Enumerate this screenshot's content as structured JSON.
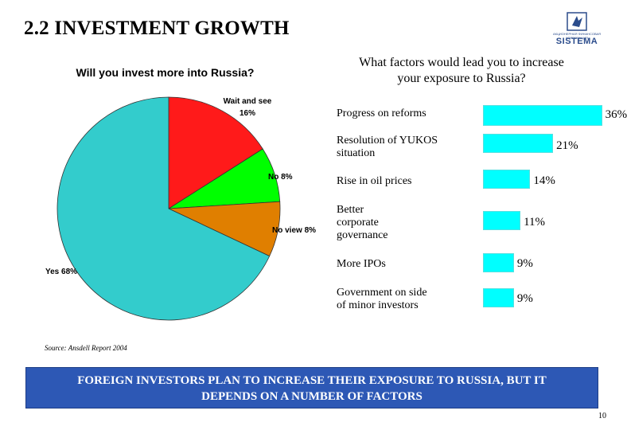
{
  "page": {
    "title": "2.2 INVESTMENT GROWTH",
    "source": "Source: Ansdell Report 2004",
    "banner_line1": "FOREIGN INVESTORS PLAN TO INCREASE THEIR EXPOSURE TO RUSSIA, BUT IT",
    "banner_line2": "DEPENDS ON A NUMBER OF FACTORS",
    "page_number": "10",
    "logo_text": "SISTEMA",
    "logo_subtext": "АКЦИОНЕРНАЯ ФИНАНСОВАЯ КОРПОРАЦИЯ"
  },
  "chart_data": [
    {
      "type": "pie",
      "title": "Will you invest more into Russia?",
      "slices": [
        {
          "label_line1": "Wait and see",
          "label_line2": "16%",
          "value": 16,
          "color": "#ff1a1a"
        },
        {
          "label_line1": "No 8%",
          "label_line2": "",
          "value": 8,
          "color": "#00ff00"
        },
        {
          "label_line1": "No view 8%",
          "label_line2": "",
          "value": 8,
          "color": "#e07f00"
        },
        {
          "label_line1": "Yes 68%",
          "label_line2": "",
          "value": 68,
          "color": "#33cccc"
        }
      ]
    },
    {
      "type": "bar",
      "orientation": "horizontal",
      "title_line1": "What factors would lead you to increase",
      "title_line2": "your exposure to Russia?",
      "categories": [
        {
          "line1": "Progress on reforms",
          "line2": "",
          "line3": ""
        },
        {
          "line1": "Resolution of YUKOS",
          "line2": "situation",
          "line3": ""
        },
        {
          "line1": "Rise in oil prices",
          "line2": "",
          "line3": ""
        },
        {
          "line1": "Better",
          "line2": "corporate",
          "line3": "governance"
        },
        {
          "line1": "More IPOs",
          "line2": "",
          "line3": ""
        },
        {
          "line1": "Government on side",
          "line2": "of minor investors",
          "line3": ""
        }
      ],
      "values": [
        36,
        21,
        14,
        11,
        9,
        9
      ],
      "value_labels": [
        "36%",
        "21%",
        "14%",
        "11%",
        "9%",
        "9%"
      ],
      "bar_color": "#00ffff"
    }
  ]
}
